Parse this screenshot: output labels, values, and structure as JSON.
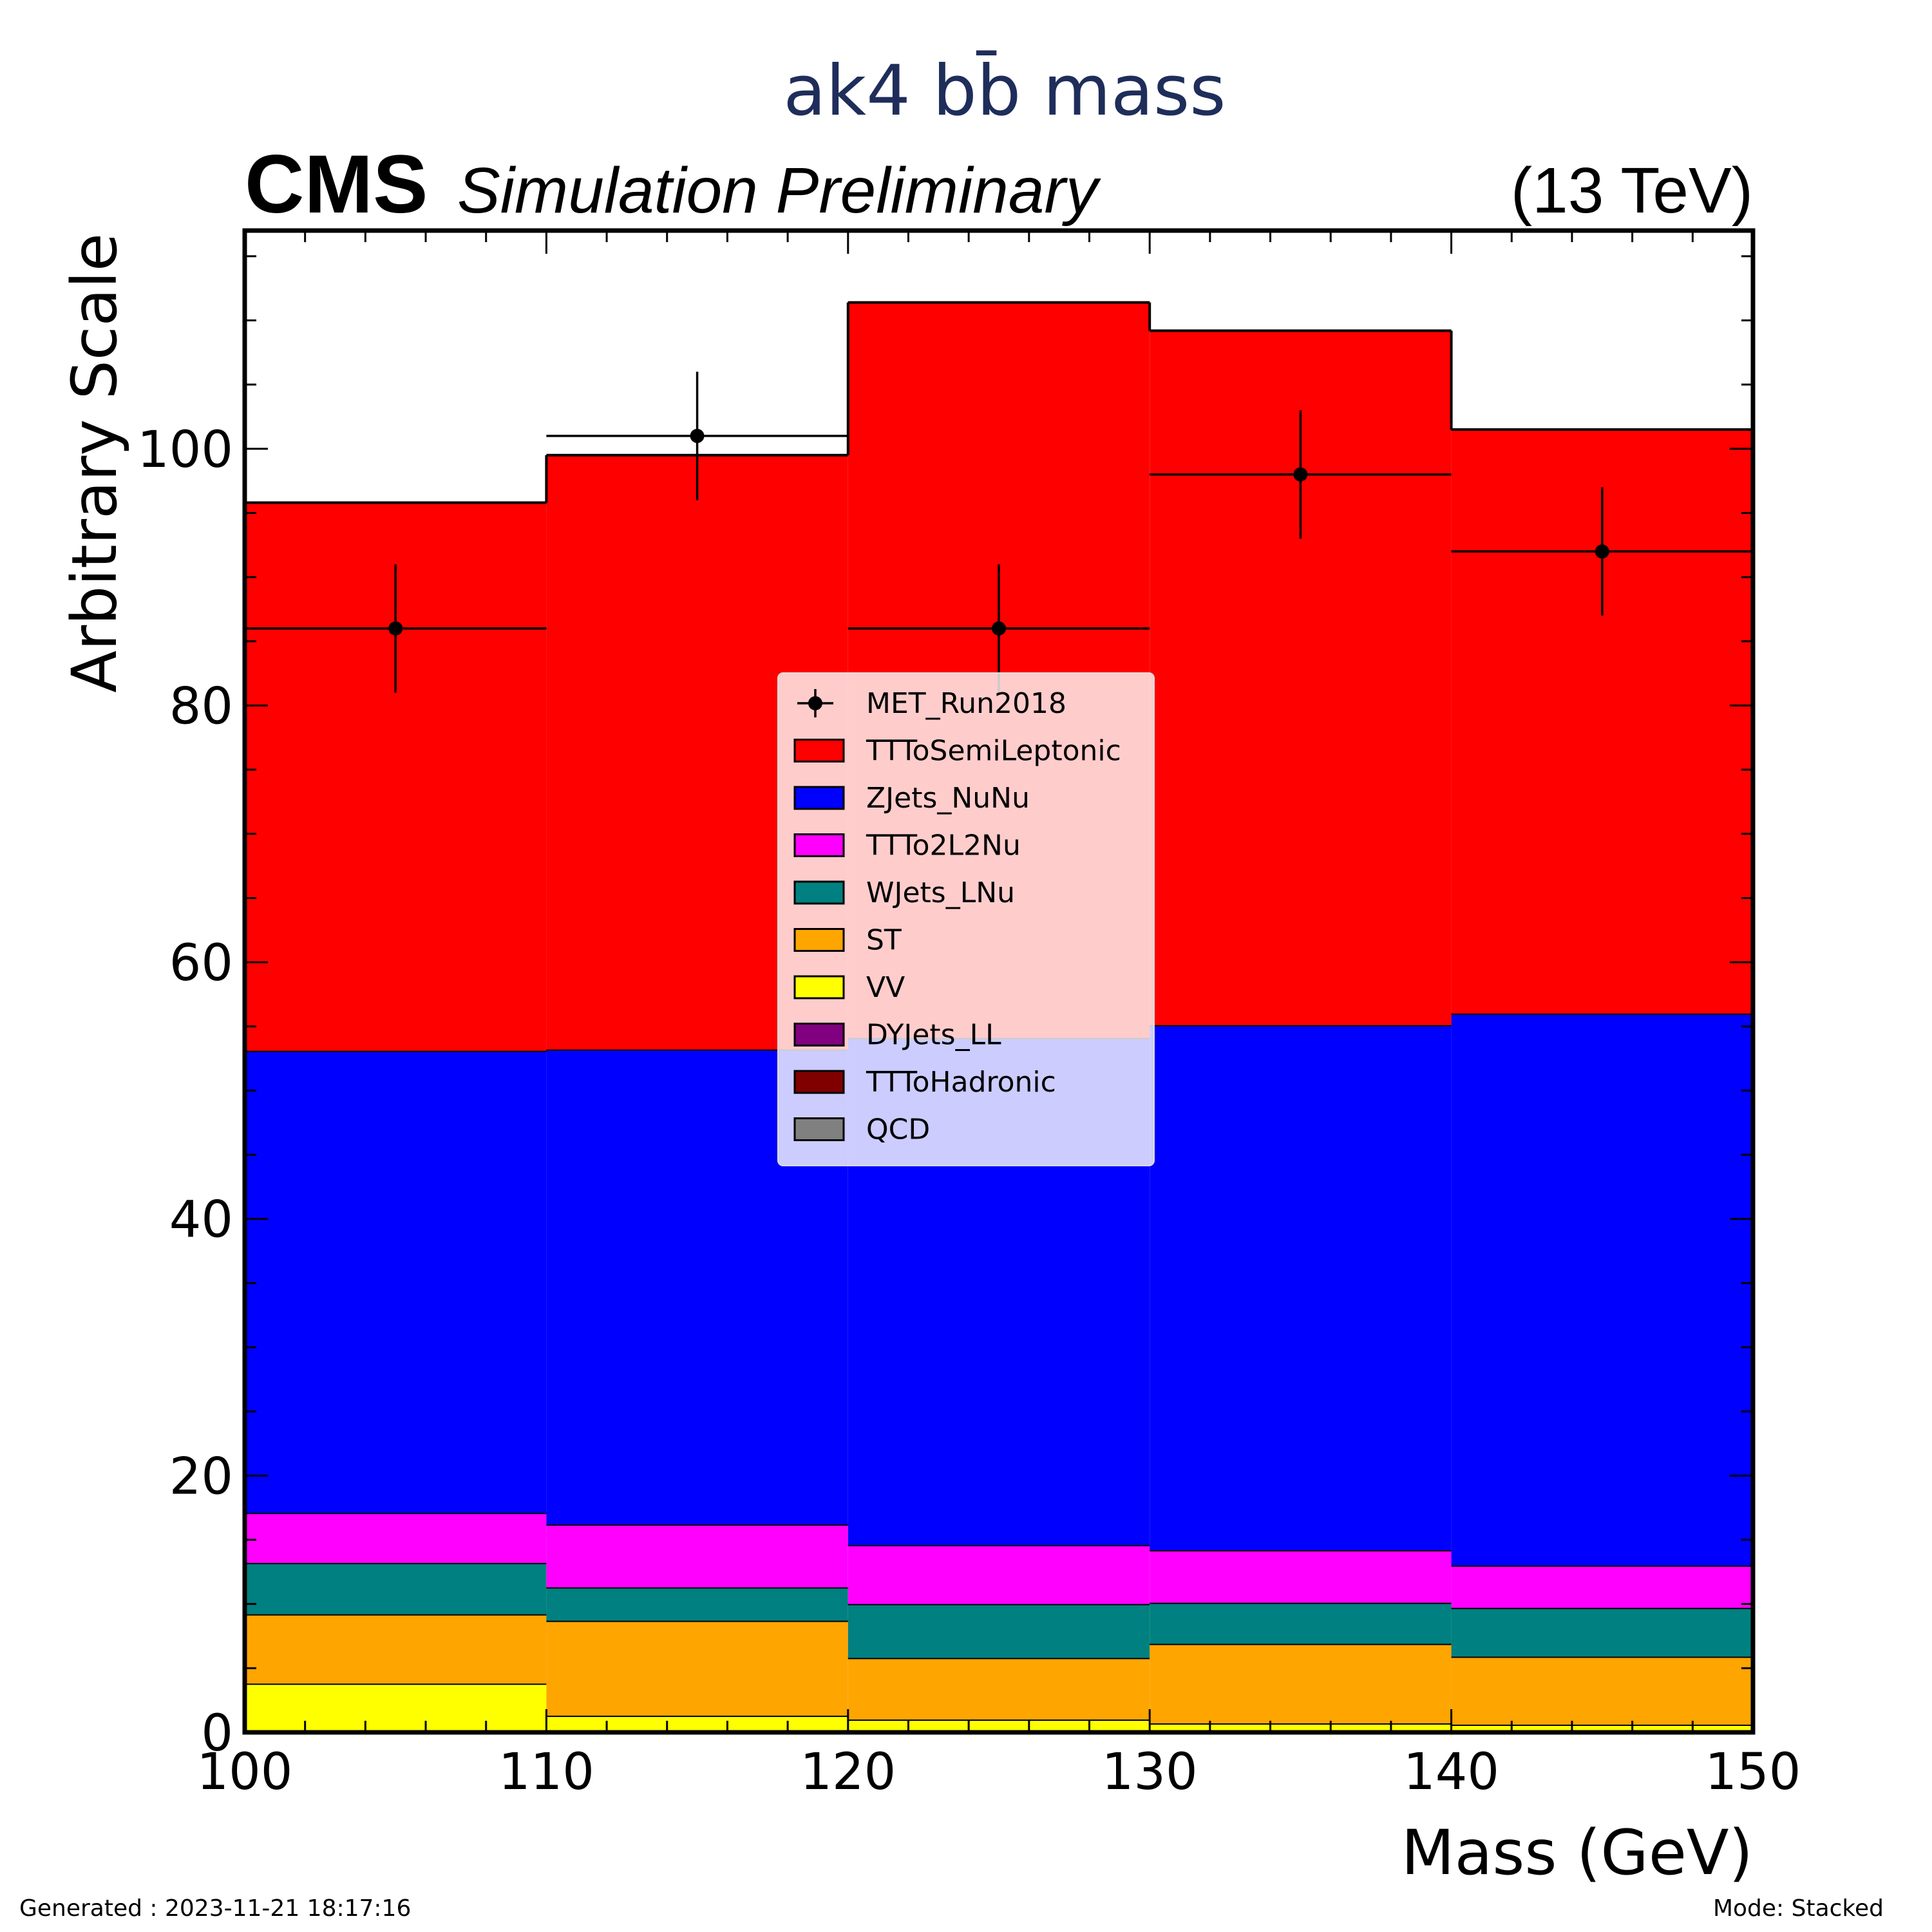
{
  "chart_data": {
    "type": "bar",
    "stacked": true,
    "title": "ak4 bb̄ mass",
    "experiment": "CMS",
    "status": "Simulation Preliminary",
    "energy": "(13 TeV)",
    "xlabel": "Mass (GeV)",
    "ylabel": "Arbitrary Scale",
    "xlim": [
      100,
      150
    ],
    "ylim": [
      0,
      117
    ],
    "bin_edges": [
      100,
      110,
      120,
      130,
      140,
      150
    ],
    "x_ticks": [
      "100",
      "110",
      "120",
      "130",
      "140",
      "150"
    ],
    "y_ticks": [
      "0",
      "20",
      "40",
      "60",
      "80",
      "100"
    ],
    "legend_position": "center",
    "series": [
      {
        "name": "QCD",
        "color": "#808080",
        "values": [
          0.0,
          0.0,
          0.0,
          0.0,
          0.0
        ]
      },
      {
        "name": "TTToHadronic",
        "color": "#800000",
        "values": [
          0.0,
          0.0,
          0.0,
          0.0,
          0.0
        ]
      },
      {
        "name": "DYJets_LL",
        "color": "#800080",
        "values": [
          0.0,
          0.0,
          0.0,
          0.0,
          0.0
        ]
      },
      {
        "name": "VV",
        "color": "#ffff00",
        "values": [
          3.8,
          1.3,
          1.0,
          0.7,
          0.6
        ]
      },
      {
        "name": "ST",
        "color": "#ffa500",
        "values": [
          5.4,
          7.4,
          4.8,
          6.2,
          5.3
        ]
      },
      {
        "name": "WJets_LNu",
        "color": "#008080",
        "values": [
          4.0,
          2.6,
          4.2,
          3.2,
          3.8
        ]
      },
      {
        "name": "TTTo2L2Nu",
        "color": "#ff00ff",
        "values": [
          3.9,
          4.9,
          4.6,
          4.1,
          3.3
        ]
      },
      {
        "name": "ZJets_NuNu",
        "color": "#0000ff",
        "values": [
          36.0,
          37.0,
          39.5,
          40.9,
          43.0
        ]
      },
      {
        "name": "TTToSemiLeptonic",
        "color": "#ff0000",
        "values": [
          42.7,
          46.3,
          57.3,
          54.1,
          45.5
        ]
      }
    ],
    "data_series": {
      "name": "MET_Run2018",
      "x": [
        105,
        115,
        125,
        135,
        145
      ],
      "values": [
        86,
        101,
        86,
        98,
        92
      ],
      "errors": [
        5,
        5,
        5,
        5,
        5
      ]
    },
    "legend": [
      {
        "label": "MET_Run2018",
        "kind": "marker"
      },
      {
        "label": "TTToSemiLeptonic",
        "color": "#ff0000"
      },
      {
        "label": "ZJets_NuNu",
        "color": "#0000ff"
      },
      {
        "label": "TTTo2L2Nu",
        "color": "#ff00ff"
      },
      {
        "label": "WJets_LNu",
        "color": "#008080"
      },
      {
        "label": "ST",
        "color": "#ffa500"
      },
      {
        "label": "VV",
        "color": "#ffff00"
      },
      {
        "label": "DYJets_LL",
        "color": "#800080"
      },
      {
        "label": "TTToHadronic",
        "color": "#800000"
      },
      {
        "label": "QCD",
        "color": "#808080"
      }
    ],
    "title_color": "#1f2d5a"
  },
  "footer": {
    "generated": "Generated : 2023-11-21 18:17:16",
    "mode": "Mode: Stacked"
  }
}
